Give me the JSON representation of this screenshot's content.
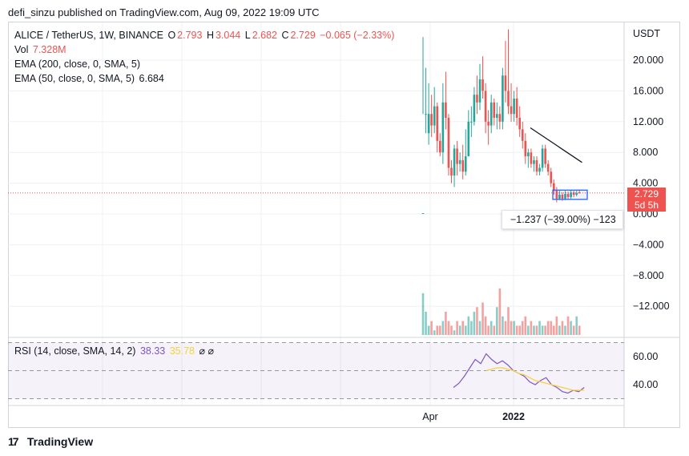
{
  "publisher": "defi_sinzu published on TradingView.com, Aug 09, 2022 19:09 UTC",
  "legend": {
    "symbol": "ALICE / TetherUS, 1W, BINANCE",
    "o_label": "O",
    "o_value": "2.793",
    "h_label": "H",
    "h_value": "3.044",
    "l_label": "L",
    "l_value": "2.682",
    "c_label": "C",
    "c_value": "2.729",
    "change": "−0.065 (−2.33%)",
    "vol_label": "Vol",
    "vol_value": "7.328M",
    "ema200_label": "EMA (200, close, 0, SMA, 5)",
    "ema50_label": "EMA (50, close, 0, SMA, 5)",
    "ema50_value": "6.684"
  },
  "rsi_legend": {
    "label": "RSI (14, close, SMA, 14, 2)",
    "rsi_value": "38.33",
    "sma_value": "35.78",
    "extra": "⌀  ⌀"
  },
  "price_box": {
    "price": "2.729",
    "countdown": "5d 5h"
  },
  "measure_box": "−1.237 (−39.00%) −123",
  "brand": "TradingView",
  "colors": {
    "up": "#26a69a",
    "down": "#ef5350",
    "ema": "#131722",
    "rsi": "#7e57c2",
    "rsi_sma": "#f7d23a",
    "box": "#2962ff"
  },
  "chart_data": [
    {
      "type": "candlestick",
      "title": "ALICE / TetherUS, 1W, BINANCE",
      "ylabel": "USDT",
      "ylim": [
        -16,
        23
      ],
      "y_ticks": [
        "20.000",
        "16.000",
        "12.000",
        "8.000",
        "4.000",
        "0.000",
        "−4.000",
        "−8.000",
        "−12.000"
      ],
      "x_ticks": [
        "Apr",
        "2022"
      ],
      "candles": [
        [
          0.1,
          0.1,
          23.0,
          13.0
        ],
        [
          13.0,
          13.0,
          19.0,
          10.5
        ],
        [
          10.5,
          13.0,
          17.0,
          9.0
        ],
        [
          13.0,
          11.5,
          15.5,
          10.0
        ],
        [
          11.5,
          14.0,
          16.5,
          10.5
        ],
        [
          14.0,
          9.5,
          14.5,
          8.0
        ],
        [
          9.5,
          8.0,
          10.5,
          7.5
        ],
        [
          8.0,
          14.5,
          17.0,
          6.5
        ],
        [
          14.5,
          12.5,
          18.5,
          11.0
        ],
        [
          12.5,
          6.0,
          13.0,
          5.0
        ],
        [
          6.0,
          5.0,
          7.0,
          4.0
        ],
        [
          5.0,
          8.5,
          9.0,
          3.5
        ],
        [
          8.5,
          6.5,
          9.5,
          5.0
        ],
        [
          6.5,
          7.0,
          8.0,
          5.5
        ],
        [
          7.0,
          5.5,
          9.0,
          4.5
        ],
        [
          5.5,
          7.5,
          11.0,
          5.0
        ],
        [
          7.5,
          12.0,
          13.5,
          7.5
        ],
        [
          12.0,
          12.0,
          14.0,
          10.0
        ],
        [
          12.0,
          15.5,
          16.5,
          11.5
        ],
        [
          15.5,
          14.5,
          18.0,
          13.0
        ],
        [
          14.5,
          17.5,
          19.5,
          13.5
        ],
        [
          17.5,
          16.0,
          20.5,
          15.0
        ],
        [
          16.0,
          12.0,
          17.0,
          10.5
        ],
        [
          12.0,
          11.5,
          13.5,
          9.0
        ],
        [
          11.5,
          14.5,
          15.5,
          10.5
        ],
        [
          14.5,
          12.5,
          15.0,
          11.5
        ],
        [
          12.5,
          13.0,
          14.5,
          11.0
        ],
        [
          13.0,
          12.0,
          14.0,
          11.0
        ],
        [
          12.0,
          18.0,
          19.0,
          11.0
        ],
        [
          18.0,
          16.0,
          22.5,
          14.5
        ],
        [
          16.0,
          14.0,
          24.0,
          13.0
        ],
        [
          14.0,
          13.0,
          17.0,
          12.0
        ],
        [
          13.0,
          15.0,
          16.0,
          12.0
        ],
        [
          15.0,
          12.5,
          16.5,
          11.5
        ],
        [
          12.5,
          11.0,
          14.0,
          10.0
        ],
        [
          11.0,
          9.5,
          12.0,
          8.5
        ],
        [
          9.5,
          7.5,
          10.5,
          6.5
        ],
        [
          7.5,
          8.0,
          8.5,
          6.0
        ],
        [
          8.0,
          6.5,
          8.5,
          6.0
        ],
        [
          6.5,
          7.0,
          7.5,
          5.5
        ],
        [
          7.0,
          5.5,
          7.5,
          5.0
        ],
        [
          5.5,
          6.0,
          6.5,
          5.0
        ],
        [
          6.0,
          8.5,
          9.0,
          5.5
        ],
        [
          8.5,
          6.5,
          9.0,
          6.0
        ],
        [
          6.5,
          5.5,
          7.0,
          5.0
        ],
        [
          5.5,
          4.0,
          6.0,
          3.5
        ],
        [
          4.0,
          3.0,
          4.5,
          2.5
        ],
        [
          3.0,
          2.0,
          3.5,
          1.5
        ],
        [
          2.0,
          2.5,
          3.0,
          1.8
        ],
        [
          2.5,
          2.0,
          2.8,
          1.7
        ],
        [
          2.0,
          2.6,
          3.0,
          1.8
        ],
        [
          2.6,
          2.2,
          2.9,
          1.9
        ],
        [
          2.2,
          2.8,
          3.1,
          2.0
        ],
        [
          2.8,
          2.5,
          3.0,
          2.2
        ],
        [
          2.5,
          2.7,
          3.0,
          2.3
        ],
        [
          2.79,
          2.73,
          3.04,
          2.68
        ]
      ],
      "ema50": [
        11.2,
        10.9,
        10.6,
        10.3,
        10.0,
        9.7,
        9.4,
        9.1,
        8.8,
        8.5,
        8.2,
        7.9,
        7.6,
        7.3,
        7.0,
        6.7
      ],
      "last_price": 2.729,
      "box_range": [
        1.9,
        3.1
      ],
      "volume": [
        9,
        5,
        2,
        3,
        1,
        2,
        2,
        3,
        5,
        3,
        2,
        1,
        3,
        2,
        3,
        2,
        4,
        3,
        5,
        6,
        3,
        7,
        4,
        2,
        3,
        2,
        6,
        10,
        4,
        3,
        6,
        3,
        3,
        2,
        2,
        3,
        4,
        2,
        3,
        2,
        2,
        3,
        2,
        2,
        3,
        3,
        2,
        4,
        2,
        3,
        2,
        4,
        3,
        2,
        4,
        2
      ]
    },
    {
      "type": "line",
      "title": "RSI (14, close, SMA, 14, 2)",
      "ylim": [
        25,
        70
      ],
      "y_ticks": [
        "60.00",
        "40.00"
      ],
      "bands": [
        70,
        50,
        30
      ],
      "series": [
        {
          "name": "RSI",
          "values": [
            38,
            41,
            46,
            52,
            58,
            55,
            62,
            58,
            55,
            57,
            54,
            50,
            48,
            46,
            42,
            40,
            43,
            45,
            40,
            38,
            35,
            34,
            36,
            35,
            38
          ]
        },
        {
          "name": "SMA",
          "values": [
            null,
            null,
            null,
            null,
            null,
            null,
            50,
            51,
            52,
            52,
            51,
            50,
            48,
            47,
            45,
            43,
            42,
            41,
            40,
            39,
            38,
            37,
            36,
            36,
            36
          ]
        }
      ]
    }
  ]
}
